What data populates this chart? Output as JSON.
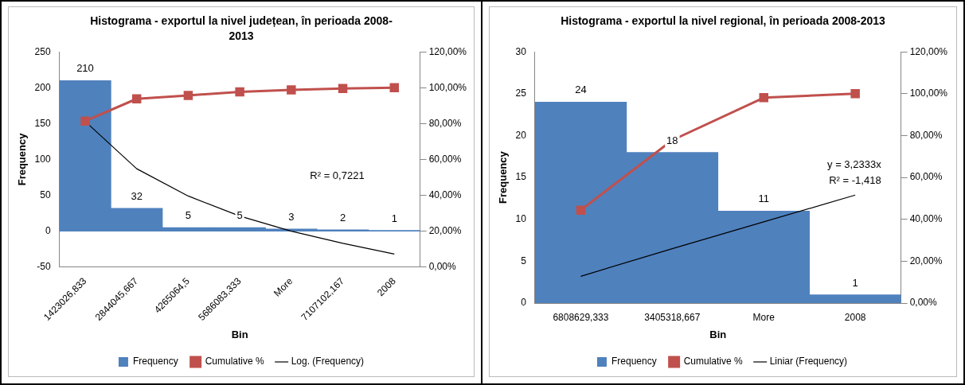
{
  "chart_data": [
    {
      "type": "bar",
      "title": "Histograma - exportul la nivel județean, în perioada 2008-2013",
      "xlabel": "Bin",
      "ylabel": "Frequency",
      "categories": [
        "1423026,833",
        "2844045,667",
        "4265064,5",
        "5686083,333",
        "More",
        "7107102,167",
        "2008"
      ],
      "series": [
        {
          "name": "Frequency",
          "color": "#4f81bd",
          "values": [
            210,
            32,
            5,
            5,
            3,
            2,
            1
          ],
          "value_labels": [
            "210",
            "32",
            "5",
            "5",
            "3",
            "2",
            "1"
          ]
        },
        {
          "name": "Cumulative %",
          "type": "line",
          "axis": "y2",
          "color": "#c0504d",
          "marker": "square",
          "values": [
            81.4,
            93.8,
            95.7,
            97.7,
            98.8,
            99.6,
            100
          ]
        },
        {
          "name": "Log. (Frequency)",
          "type": "line",
          "color": "#000000",
          "marker": "none",
          "values": [
            153,
            87,
            49,
            21,
            0,
            -17,
            -32
          ]
        }
      ],
      "ylim": [
        -50,
        250
      ],
      "yticks": [
        -50,
        0,
        50,
        100,
        150,
        200,
        250
      ],
      "y2lim": [
        0,
        120
      ],
      "y2ticks": [
        {
          "value": 0,
          "label": "0,00%"
        },
        {
          "value": 20,
          "label": "20,00%"
        },
        {
          "value": 40,
          "label": "40,00%"
        },
        {
          "value": 60,
          "label": "60,00%"
        },
        {
          "value": 80,
          "label": "80,00%"
        },
        {
          "value": 100,
          "label": "100,00%"
        },
        {
          "value": 120,
          "label": "120,00%"
        }
      ],
      "annotations": [
        "R² = 0,7221"
      ],
      "legend": "bottom"
    },
    {
      "type": "bar",
      "title": "Histograma - exportul la nivel regional, în perioada 2008-2013",
      "xlabel": "Bin",
      "ylabel": "Frequency",
      "categories": [
        "6808629,333",
        "3405318,667",
        "More",
        "2008"
      ],
      "series": [
        {
          "name": "Frequency",
          "color": "#4f81bd",
          "values": [
            24,
            18,
            11,
            1
          ],
          "value_labels": [
            "24",
            "18",
            "11",
            "1"
          ]
        },
        {
          "name": "Cumulative %",
          "type": "line",
          "axis": "y2",
          "color": "#c0504d",
          "marker": "square",
          "values": [
            44.4,
            77.8,
            98.1,
            100
          ]
        },
        {
          "name": "Liniar (Frequency)",
          "type": "line",
          "color": "#000000",
          "marker": "none",
          "values": [
            3.2,
            6.5,
            9.7,
            12.9
          ]
        }
      ],
      "ylim": [
        0,
        30
      ],
      "yticks": [
        0,
        5,
        10,
        15,
        20,
        25,
        30
      ],
      "y2lim": [
        0,
        120
      ],
      "y2ticks": [
        {
          "value": 0,
          "label": "0,00%"
        },
        {
          "value": 20,
          "label": "20,00%"
        },
        {
          "value": 40,
          "label": "40,00%"
        },
        {
          "value": 60,
          "label": "60,00%"
        },
        {
          "value": 80,
          "label": "80,00%"
        },
        {
          "value": 100,
          "label": "100,00%"
        },
        {
          "value": 120,
          "label": "120,00%"
        }
      ],
      "annotations": [
        "y = 3,2333x",
        "R² = -1,418"
      ],
      "legend": "bottom"
    }
  ]
}
